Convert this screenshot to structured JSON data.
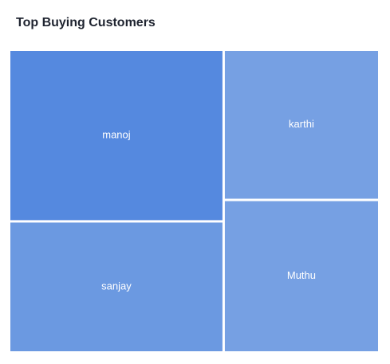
{
  "chart_data": {
    "type": "treemap",
    "title": "Top Buying Customers",
    "categories": [
      "manoj",
      "sanjay",
      "karthi",
      "Muthu"
    ],
    "values": [
      40,
      30,
      25,
      25
    ],
    "colors": [
      "#5589df",
      "#6b99e1",
      "#76a0e3",
      "#76a0e3"
    ]
  }
}
